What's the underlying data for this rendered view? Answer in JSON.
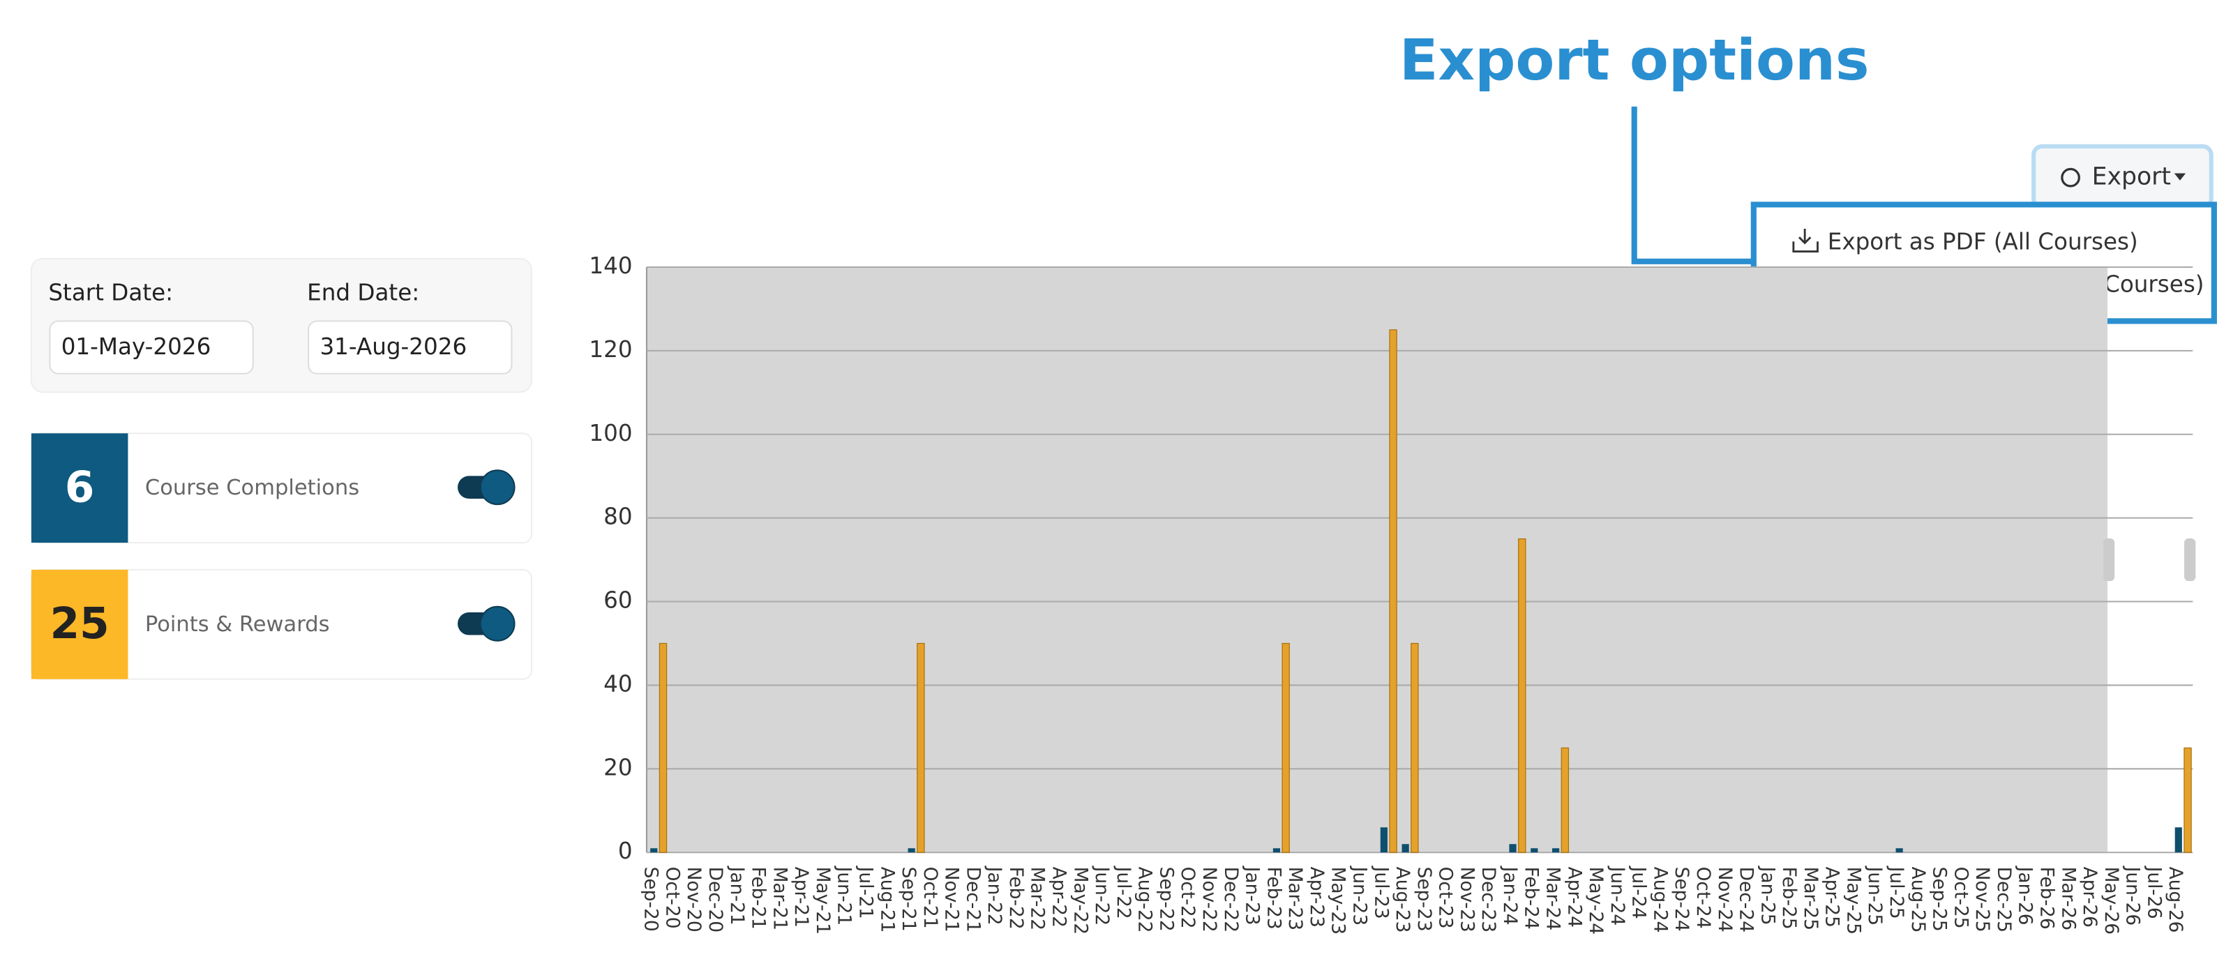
{
  "ui": {
    "annotation": "Export options",
    "export_button": "Export",
    "export_menu": [
      "Export as PDF (All Courses)",
      "Export as PDF (External Courses)"
    ],
    "filters": {
      "start_label": "Start Date:",
      "start_value": "01-May-2026",
      "end_label": "End Date:",
      "end_value": "31-Aug-2026"
    },
    "cards": [
      6,
      25
    ]
  },
  "chart_data": {
    "type": "bar",
    "categories": [
      "Sep-20",
      "Oct-20",
      "Nov-20",
      "Dec-20",
      "Jan-21",
      "Feb-21",
      "Mar-21",
      "Apr-21",
      "May-21",
      "Jun-21",
      "Jul-21",
      "Aug-21",
      "Sep-21",
      "Oct-21",
      "Nov-21",
      "Dec-21",
      "Jan-22",
      "Feb-22",
      "Mar-22",
      "Apr-22",
      "May-22",
      "Jun-22",
      "Jul-22",
      "Aug-22",
      "Sep-22",
      "Oct-22",
      "Nov-22",
      "Dec-22",
      "Jan-23",
      "Feb-23",
      "Mar-23",
      "Apr-23",
      "May-23",
      "Jun-23",
      "Jul-23",
      "Aug-23",
      "Sep-23",
      "Oct-23",
      "Nov-23",
      "Dec-23",
      "Jan-24",
      "Feb-24",
      "Mar-24",
      "Apr-24",
      "May-24",
      "Jun-24",
      "Jul-24",
      "Aug-24",
      "Sep-24",
      "Oct-24",
      "Nov-24",
      "Dec-24",
      "Jan-25",
      "Feb-25",
      "Mar-25",
      "Apr-25",
      "May-25",
      "Jun-25",
      "Jul-25",
      "Aug-25",
      "Sep-25",
      "Oct-25",
      "Nov-25",
      "Dec-25",
      "Jan-26",
      "Feb-26",
      "Mar-26",
      "Apr-26",
      "May-26",
      "Jun-26",
      "Jul-26",
      "Aug-26"
    ],
    "series": [
      {
        "name": "Course Completions",
        "color": "#0e4f6e",
        "values": [
          1,
          0,
          0,
          0,
          0,
          0,
          0,
          0,
          0,
          0,
          0,
          0,
          1,
          0,
          0,
          0,
          0,
          0,
          0,
          0,
          0,
          0,
          0,
          0,
          0,
          0,
          0,
          0,
          0,
          1,
          0,
          0,
          0,
          0,
          6,
          2,
          0,
          0,
          0,
          0,
          2,
          1,
          1,
          0,
          0,
          0,
          0,
          0,
          0,
          0,
          0,
          0,
          0,
          0,
          0,
          0,
          0,
          0,
          1,
          0,
          0,
          0,
          0,
          0,
          0,
          0,
          0,
          0,
          0,
          0,
          0,
          6
        ]
      },
      {
        "name": "Points & Rewards",
        "color": "#e5a22a",
        "values": [
          50,
          0,
          0,
          0,
          0,
          0,
          0,
          0,
          0,
          0,
          0,
          0,
          50,
          0,
          0,
          0,
          0,
          0,
          0,
          0,
          0,
          0,
          0,
          0,
          0,
          0,
          0,
          0,
          0,
          50,
          0,
          0,
          0,
          0,
          125,
          50,
          0,
          0,
          0,
          0,
          75,
          0,
          25,
          0,
          0,
          0,
          0,
          0,
          0,
          0,
          0,
          0,
          0,
          0,
          0,
          0,
          0,
          0,
          0,
          0,
          0,
          0,
          0,
          0,
          0,
          0,
          0,
          0,
          0,
          0,
          0,
          25
        ]
      }
    ],
    "ylim": [
      0,
      140
    ],
    "yticks": [
      0,
      20,
      40,
      60,
      80,
      100,
      120,
      140
    ],
    "grid": true
  }
}
